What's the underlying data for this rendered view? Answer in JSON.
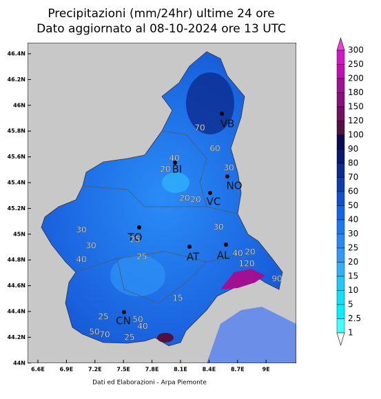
{
  "header": {
    "title": "Precipitazioni (mm/24hr) ultime 24 ore",
    "subtitle": "Dato aggiornato al 08-10-2024 ore 13 UTC"
  },
  "axes": {
    "lon": [
      "6.6E",
      "6.9E",
      "7.2E",
      "7.5E",
      "7.8E",
      "8.1E",
      "8.4E",
      "8.7E",
      "9E"
    ],
    "lat": [
      "46.4N",
      "46.2N",
      "46N",
      "45.8N",
      "45.6N",
      "45.4N",
      "45.2N",
      "45N",
      "44.8N",
      "44.6N",
      "44.4N",
      "44.2N",
      "44N"
    ]
  },
  "legend": {
    "levels": [
      "300",
      "250",
      "200",
      "180",
      "150",
      "120",
      "100",
      "90",
      "80",
      "70",
      "60",
      "50",
      "40",
      "30",
      "25",
      "20",
      "15",
      "10",
      "5",
      "2.5",
      "1"
    ],
    "colors": [
      "#d018c8",
      "#c010b0",
      "#a01090",
      "#88107a",
      "#701060",
      "#501040",
      "#0a0a50",
      "#081870",
      "#0a2a90",
      "#0c3cb0",
      "#1050d0",
      "#1464e8",
      "#1c78f0",
      "#2888f4",
      "#3098f8",
      "#30b0fa",
      "#20c8fc",
      "#10e0fc",
      "#00f0fc",
      "#40ffff"
    ]
  },
  "cities": [
    "VB",
    "BI",
    "NO",
    "VC",
    "TO",
    "AT",
    "AL",
    "CN"
  ],
  "contour_labels": [
    "70",
    "60",
    "40",
    "20",
    "30",
    "20",
    "20",
    "30",
    "30",
    "25",
    "30",
    "40",
    "25",
    "40",
    "20",
    "120",
    "90",
    "15",
    "25",
    "50",
    "40",
    "50",
    "70",
    "25"
  ],
  "footer": "Dati ed Elaborazioni - Arpa Piemonte"
}
